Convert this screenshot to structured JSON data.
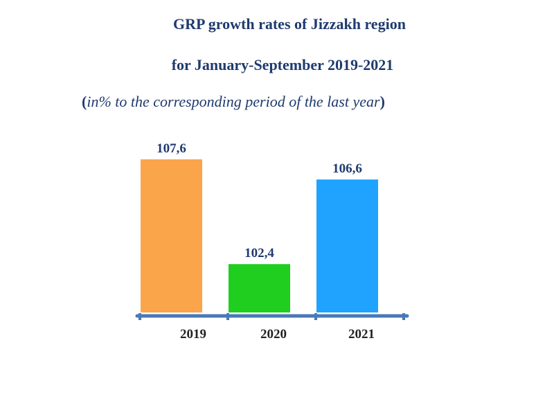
{
  "chart_data": {
    "type": "bar",
    "title_line1": "GRP growth rates of Jizzakh region",
    "title_line2": "for January-September 2019-2021",
    "subtitle": {
      "open": "(",
      "text": "in% to the corresponding period of the last year",
      "close": ")"
    },
    "categories": [
      "2019",
      "2020",
      "2021"
    ],
    "values": [
      107.6,
      102.4,
      106.6
    ],
    "value_labels": [
      "107,6",
      "102,4",
      "106,6"
    ],
    "colors": [
      "#fba54b",
      "#1fce1f",
      "#1fa3ff"
    ],
    "axis_color": "#4a78b8",
    "label_color": "#1f3a6e",
    "tick_label_color": "#222222",
    "ylim": [
      100,
      108.5
    ],
    "grid": false,
    "legend": "none"
  }
}
